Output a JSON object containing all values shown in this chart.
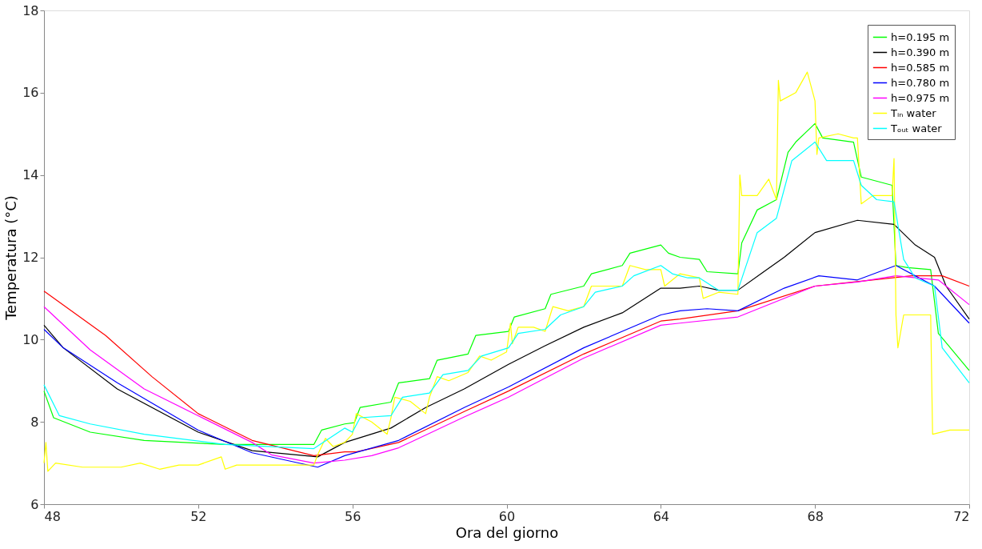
{
  "chart_data": {
    "type": "line",
    "xlabel": "Ora del giorno",
    "ylabel": "Temperatura (°C)",
    "xlim": [
      48,
      72
    ],
    "xticks": [
      48,
      52,
      56,
      60,
      64,
      68,
      72
    ],
    "ylim": [
      6,
      18
    ],
    "yticks": [
      6,
      8,
      10,
      12,
      14,
      16,
      18
    ],
    "grid": false,
    "legend": "top right",
    "marker": "none",
    "line_style": "solid",
    "series": [
      {
        "name": "h=0.195 m",
        "color": "#00ff00",
        "x": [
          48,
          48.25,
          49.2,
          50.6,
          52.7,
          55,
          55.2,
          55.8,
          56.05,
          56.2,
          57,
          57.2,
          58,
          58.2,
          59,
          59.2,
          60.05,
          60.2,
          61,
          61.15,
          62,
          62.2,
          63,
          63.2,
          64,
          64.2,
          64.5,
          65,
          65.2,
          66,
          66.1,
          66.5,
          67,
          67.3,
          67.5,
          68,
          68.2,
          69,
          69.2,
          70,
          70.1,
          70.4,
          71,
          71.2,
          72
        ],
        "values": [
          8.75,
          8.1,
          7.75,
          7.55,
          7.45,
          7.45,
          7.8,
          7.95,
          7.98,
          8.35,
          8.48,
          8.95,
          9.05,
          9.5,
          9.65,
          10.1,
          10.2,
          10.55,
          10.75,
          11.1,
          11.3,
          11.6,
          11.8,
          12.1,
          12.3,
          12.1,
          12.0,
          11.95,
          11.65,
          11.6,
          12.35,
          13.15,
          13.4,
          14.55,
          14.8,
          15.25,
          14.9,
          14.8,
          13.95,
          13.75,
          11.8,
          11.75,
          11.7,
          10.15,
          9.25
        ]
      },
      {
        "name": "h=0.390 m",
        "color": "#000000",
        "x": [
          48,
          48.5,
          49.9,
          52,
          53.4,
          55.1,
          55.8,
          57,
          57.9,
          58.9,
          60.05,
          61,
          62,
          63,
          64,
          64.5,
          65,
          65.5,
          66,
          66.6,
          67.2,
          68,
          69.1,
          70.05,
          70.6,
          71.1,
          71.4,
          72
        ],
        "values": [
          10.35,
          9.8,
          8.8,
          7.75,
          7.3,
          7.15,
          7.5,
          7.85,
          8.35,
          8.8,
          9.4,
          9.85,
          10.3,
          10.65,
          11.25,
          11.25,
          11.3,
          11.2,
          11.2,
          11.6,
          12.0,
          12.6,
          12.9,
          12.8,
          12.3,
          12.0,
          11.3,
          10.5
        ]
      },
      {
        "name": "h=0.585 m",
        "color": "#ff0000",
        "x": [
          48,
          49.6,
          50.8,
          52,
          53.4,
          55,
          55.8,
          56.1,
          57.2,
          58.9,
          60.05,
          62,
          64,
          64.5,
          66,
          68,
          69,
          70.5,
          71.3,
          72
        ],
        "values": [
          11.18,
          10.1,
          9.1,
          8.2,
          7.55,
          7.18,
          7.27,
          7.27,
          7.5,
          8.25,
          8.75,
          9.65,
          10.45,
          10.5,
          10.7,
          11.3,
          11.4,
          11.55,
          11.55,
          11.3
        ]
      },
      {
        "name": "h=0.780 m",
        "color": "#0000ff",
        "x": [
          48,
          48.5,
          49.9,
          52,
          53.4,
          55.1,
          55.8,
          57.2,
          58.9,
          60.05,
          62,
          64,
          64.5,
          65.2,
          66,
          67.2,
          68.1,
          69.1,
          70.1,
          70.6,
          71.1,
          72
        ],
        "values": [
          10.25,
          9.8,
          8.95,
          7.8,
          7.25,
          6.9,
          7.18,
          7.55,
          8.35,
          8.85,
          9.8,
          10.6,
          10.7,
          10.75,
          10.7,
          11.25,
          11.55,
          11.45,
          11.8,
          11.55,
          11.3,
          10.4
        ]
      },
      {
        "name": "h=0.975 m",
        "color": "#ff00ff",
        "x": [
          48,
          49.2,
          50.6,
          52,
          53.4,
          53.9,
          55,
          55.8,
          56.5,
          57.2,
          58.9,
          60.05,
          62,
          64,
          64.5,
          66,
          68,
          69.1,
          70.1,
          71.2,
          72
        ],
        "values": [
          10.8,
          9.75,
          8.8,
          8.15,
          7.5,
          7.2,
          7.0,
          7.07,
          7.18,
          7.37,
          8.12,
          8.6,
          9.55,
          10.35,
          10.4,
          10.55,
          11.3,
          11.4,
          11.55,
          11.45,
          10.85
        ]
      },
      {
        "name": "Tᵢₙ water",
        "color": "#ffff00",
        "x": [
          48,
          48.05,
          48.1,
          48.3,
          49,
          50,
          50.5,
          51,
          51.5,
          52,
          52.6,
          52.7,
          53,
          54,
          55,
          55.1,
          55.3,
          55.5,
          55.8,
          56,
          56.1,
          56.5,
          56.9,
          57,
          57.1,
          57.5,
          57.9,
          58,
          58.2,
          58.5,
          59,
          59.3,
          59.6,
          60,
          60.1,
          60.15,
          60.3,
          60.7,
          61,
          61.2,
          61.6,
          62,
          62.2,
          62.6,
          63,
          63.2,
          63.6,
          64,
          64.1,
          64.5,
          65,
          65.1,
          65.5,
          66,
          66.05,
          66.1,
          66.5,
          66.8,
          67,
          67.05,
          67.1,
          67.5,
          67.8,
          68,
          68.05,
          68.1,
          68.6,
          69,
          69.1,
          69.2,
          69.5,
          70,
          70.05,
          70.1,
          70.15,
          70.3,
          70.7,
          71,
          71.05,
          71.5,
          72
        ],
        "values": [
          7.0,
          7.5,
          6.8,
          7.0,
          6.9,
          6.9,
          7.0,
          6.85,
          6.95,
          6.95,
          7.15,
          6.85,
          6.95,
          6.95,
          6.95,
          7.2,
          7.6,
          7.4,
          7.5,
          7.7,
          8.2,
          8.0,
          7.7,
          8.1,
          8.6,
          8.5,
          8.2,
          8.6,
          9.1,
          9.0,
          9.2,
          9.6,
          9.5,
          9.7,
          10.4,
          9.9,
          10.3,
          10.3,
          10.2,
          10.8,
          10.7,
          10.8,
          11.3,
          11.3,
          11.3,
          11.8,
          11.7,
          11.7,
          11.3,
          11.6,
          11.5,
          11.0,
          11.15,
          11.1,
          14.0,
          13.5,
          13.5,
          13.9,
          13.4,
          16.3,
          15.8,
          16.0,
          16.5,
          15.8,
          14.5,
          14.9,
          15.0,
          14.9,
          14.9,
          13.3,
          13.5,
          13.5,
          14.4,
          10.6,
          9.8,
          10.6,
          10.6,
          10.6,
          7.7,
          7.8,
          7.8
        ]
      },
      {
        "name": "Tₒᵤₜ water",
        "color": "#00ffff",
        "x": [
          48,
          48.4,
          49.2,
          50.6,
          52.7,
          55,
          55.8,
          56,
          56.2,
          57,
          57.3,
          58,
          58.35,
          59,
          59.35,
          60.05,
          60.3,
          61,
          61.4,
          62,
          62.3,
          63,
          63.3,
          64,
          64.3,
          64.7,
          65,
          65.5,
          66,
          66.5,
          67,
          67.4,
          68,
          68.3,
          69,
          69.2,
          69.6,
          70.05,
          70.3,
          70.6,
          71.1,
          71.3,
          72
        ],
        "values": [
          8.9,
          8.15,
          7.95,
          7.7,
          7.45,
          7.35,
          7.85,
          7.75,
          8.1,
          8.15,
          8.6,
          8.7,
          9.15,
          9.25,
          9.6,
          9.8,
          10.15,
          10.25,
          10.6,
          10.8,
          11.15,
          11.3,
          11.55,
          11.8,
          11.6,
          11.5,
          11.5,
          11.2,
          11.2,
          12.6,
          12.95,
          14.35,
          14.8,
          14.35,
          14.35,
          13.75,
          13.4,
          13.35,
          11.95,
          11.5,
          11.3,
          9.8,
          8.95
        ]
      }
    ]
  }
}
